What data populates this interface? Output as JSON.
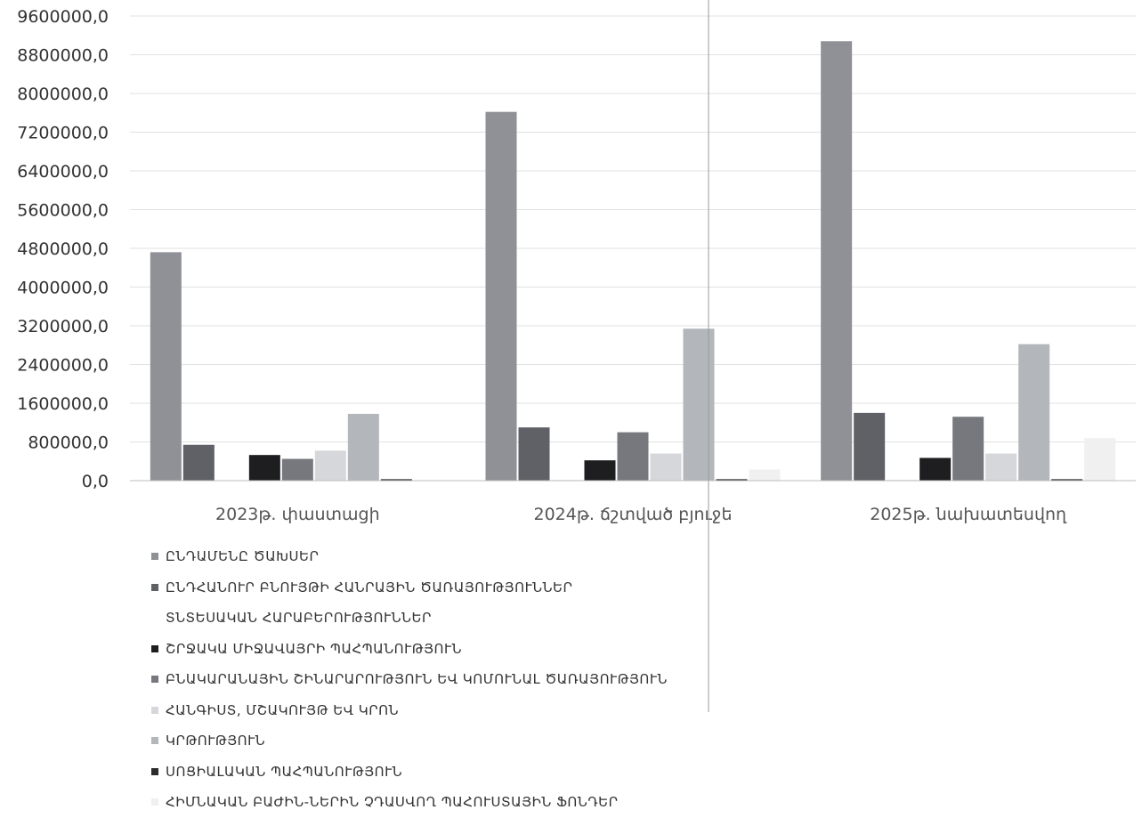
{
  "chart_data": {
    "type": "bar",
    "categories": [
      "2023թ. փաստացի",
      "2024թ. ճշտված բյուջե",
      "2025թ. նախատեսվող"
    ],
    "y_ticks": [
      "0,0",
      "800000,0",
      "1600000,0",
      "2400000,0",
      "3200000,0",
      "4000000,0",
      "4800000,0",
      "5600000,0",
      "6400000,0",
      "7200000,0",
      "8000000,0",
      "8800000,0",
      "9600000,0"
    ],
    "ylim": [
      0,
      9600000
    ],
    "grid": true,
    "legend_position": "bottom-left",
    "series": [
      {
        "name": "ԸՆԴԱՄԵՆԸ ԾԱԽՍԵՐ",
        "color": "#8f9196",
        "values": [
          4720000,
          7620000,
          9080000
        ]
      },
      {
        "name": "ԸՆԴՀԱՆՈՒՐ ԲՆՈՒՅԹԻ ՀԱՆՐԱՅԻՆ ԾԱՌԱՅՈՒԹՅՈՒՆՆԵՐ",
        "color": "#5f6166",
        "values": [
          740000,
          1100000,
          1400000
        ]
      },
      {
        "name": "ՏՆՏԵՍԱԿԱՆ ՀԱՐԱԲԵՐՈՒԹՅՈՒՆՆԵՐ",
        "color": "#ececec",
        "values": [
          10000,
          15000,
          20000
        ]
      },
      {
        "name": "ՇՐՋԱԿԱ ՄԻՋԱՎԱՅՐԻ ՊԱՀՊԱՆՈՒԹՅՈՒՆ",
        "color": "#1e1e20",
        "values": [
          530000,
          420000,
          470000
        ]
      },
      {
        "name": "ԲՆԱԿԱՐԱՆԱՅԻՆ ՇԻՆԱՐԱՐՈՒԹՅՈՒՆ ԵՎ ԿՈՄՈՒՆԱԼ ԾԱՌԱՅՈՒԹՅՈՒՆ",
        "color": "#76787d",
        "values": [
          450000,
          1000000,
          1320000
        ]
      },
      {
        "name": "ՀԱՆԳԻՍՏ, ՄՇԱԿՈՒՅԹ ԵՎ ԿՐՈՆ",
        "color": "#d6d7da",
        "values": [
          620000,
          560000,
          560000
        ]
      },
      {
        "name": "ԿՐԹՈՒԹՅՈՒՆ",
        "color": "#b3b6bb",
        "values": [
          1380000,
          3140000,
          2820000
        ]
      },
      {
        "name": "ՍՈՑԻԱԼԱԿԱՆ ՊԱՀՊԱՆՈՒԹՅՈՒՆ",
        "color": "#2b2b2e",
        "values": [
          30000,
          30000,
          30000
        ]
      },
      {
        "name": "ՀԻՄՆԱԿԱՆ ԲԱԺԻՆ-ՆԵՐԻՆ ՉԴԱՍՎՈՂ ՊԱՀՈՒՍՏԱՅԻՆ ՖՈՆԴԵՐ",
        "color": "#f0f0f0",
        "values": [
          0,
          230000,
          880000
        ]
      }
    ]
  }
}
